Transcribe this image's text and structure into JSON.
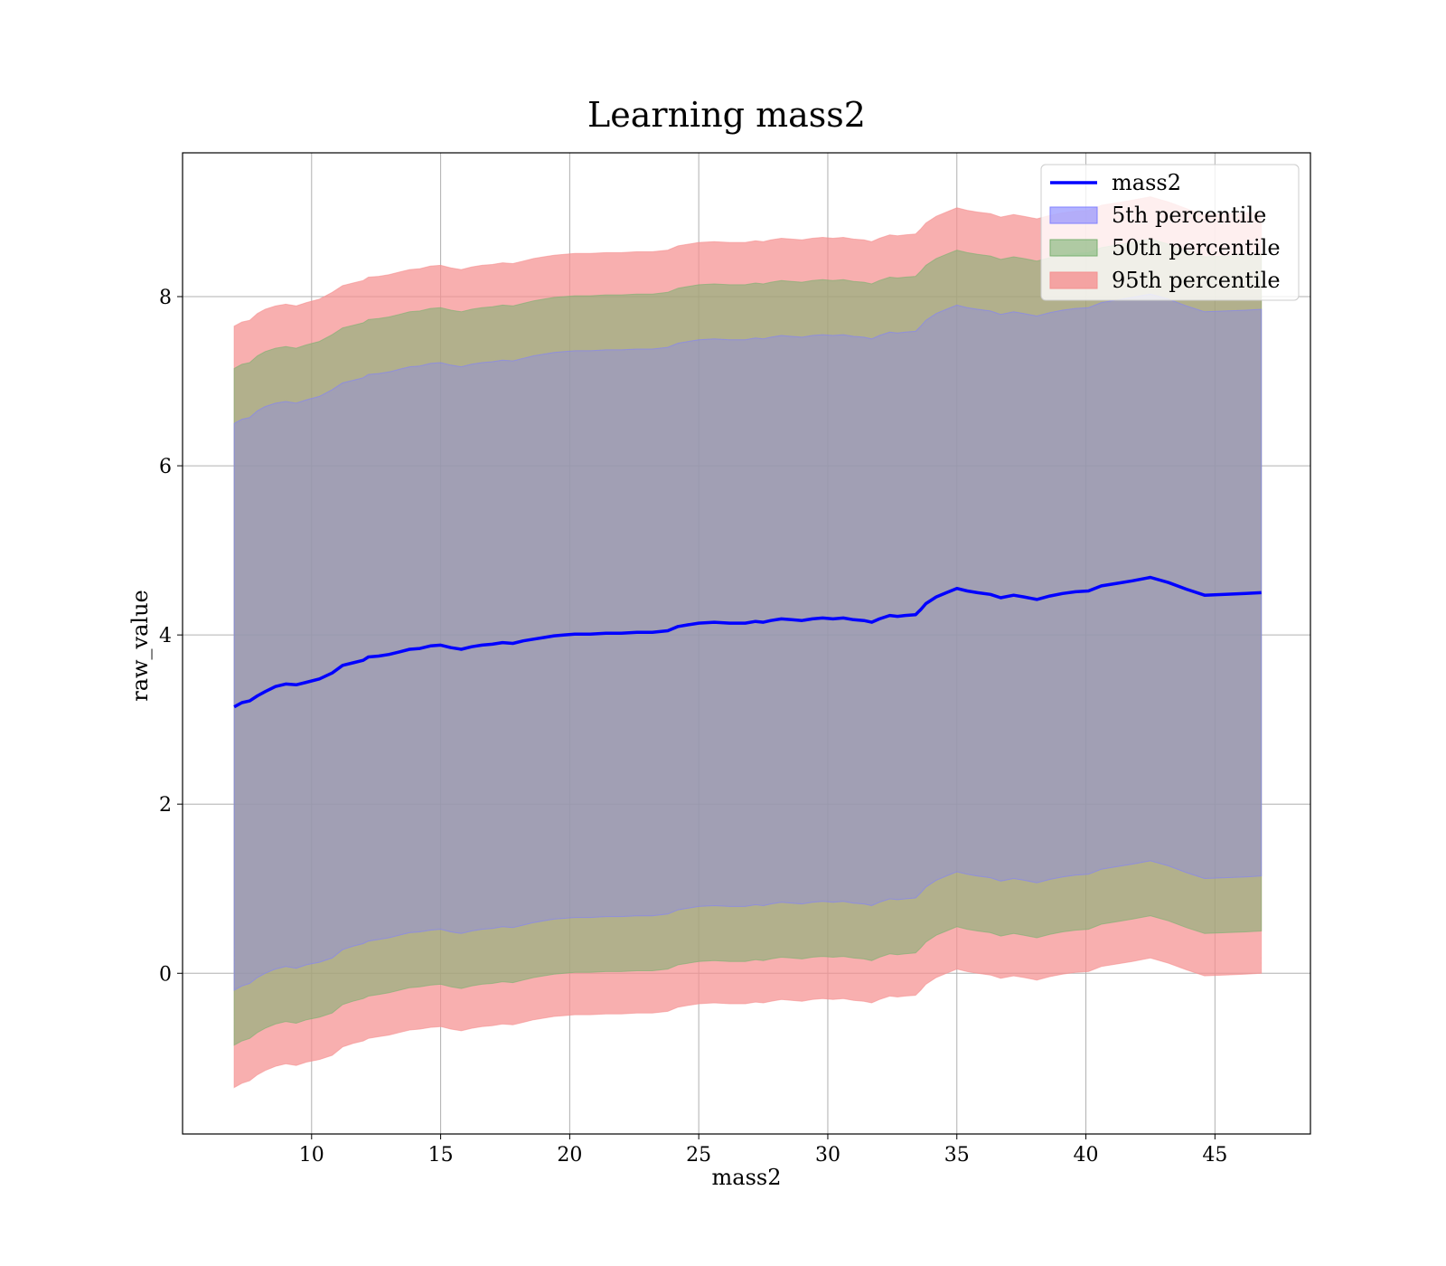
{
  "chart_data": {
    "type": "line",
    "title": "Learning mass2",
    "xlabel": "mass2",
    "ylabel": "raw_value",
    "xlim": [
      5.0,
      48.7
    ],
    "ylim": [
      -1.9,
      9.7
    ],
    "xticks": [
      10,
      15,
      20,
      25,
      30,
      35,
      40,
      45
    ],
    "yticks": [
      0,
      2,
      4,
      6,
      8
    ],
    "grid": true,
    "legend_position": "top-right",
    "colors": {
      "line": "#0000ff",
      "p5": "#8080ff",
      "p50": "#79b070",
      "p95": "#f59090",
      "band_fill": "#a07078",
      "band_mid": "#c89478",
      "band_outer": "#fdafaf",
      "grid": "#b0b0b0"
    },
    "x": [
      7.0,
      7.3,
      7.6,
      7.9,
      8.2,
      8.6,
      9.0,
      9.4,
      9.8,
      10.3,
      10.8,
      11.2,
      11.6,
      12.0,
      12.2,
      12.6,
      13.0,
      13.4,
      13.8,
      14.2,
      14.6,
      15.0,
      15.4,
      15.8,
      16.2,
      16.6,
      17.0,
      17.4,
      17.8,
      18.2,
      18.6,
      19.0,
      19.4,
      19.8,
      20.2,
      20.8,
      21.4,
      22.0,
      22.6,
      23.2,
      23.8,
      24.2,
      24.6,
      25.0,
      25.6,
      26.2,
      26.8,
      27.2,
      27.5,
      27.8,
      28.2,
      28.6,
      29.0,
      29.4,
      29.8,
      30.2,
      30.6,
      31.0,
      31.4,
      31.7,
      32.0,
      32.4,
      32.7,
      33.0,
      33.4,
      33.6,
      33.8,
      34.2,
      34.6,
      35.0,
      35.4,
      35.8,
      36.3,
      36.7,
      37.2,
      37.6,
      38.1,
      38.6,
      39.1,
      39.6,
      40.1,
      40.6,
      41.2,
      41.8,
      42.5,
      43.2,
      43.9,
      44.6,
      45.4,
      46.2,
      46.8
    ],
    "series": [
      {
        "name": "mass2",
        "values": [
          3.15,
          3.2,
          3.22,
          3.28,
          3.33,
          3.39,
          3.42,
          3.41,
          3.44,
          3.48,
          3.55,
          3.64,
          3.67,
          3.7,
          3.74,
          3.75,
          3.77,
          3.8,
          3.83,
          3.84,
          3.87,
          3.88,
          3.85,
          3.83,
          3.86,
          3.88,
          3.89,
          3.91,
          3.9,
          3.93,
          3.95,
          3.97,
          3.99,
          4.0,
          4.01,
          4.01,
          4.02,
          4.02,
          4.03,
          4.03,
          4.05,
          4.1,
          4.12,
          4.14,
          4.15,
          4.14,
          4.14,
          4.16,
          4.15,
          4.17,
          4.19,
          4.18,
          4.17,
          4.19,
          4.2,
          4.19,
          4.2,
          4.18,
          4.17,
          4.15,
          4.19,
          4.23,
          4.22,
          4.23,
          4.24,
          4.3,
          4.37,
          4.45,
          4.5,
          4.55,
          4.52,
          4.5,
          4.48,
          4.44,
          4.47,
          4.45,
          4.42,
          4.46,
          4.49,
          4.51,
          4.52,
          4.58,
          4.61,
          4.64,
          4.68,
          4.62,
          4.54,
          4.47,
          4.48,
          4.49,
          4.5
        ]
      },
      {
        "name": "5th percentile",
        "values": [
          -0.2,
          -0.15,
          -0.12,
          -0.05,
          0.0,
          0.05,
          0.08,
          0.06,
          0.1,
          0.13,
          0.18,
          0.28,
          0.32,
          0.35,
          0.38,
          0.4,
          0.42,
          0.45,
          0.48,
          0.49,
          0.51,
          0.52,
          0.49,
          0.47,
          0.5,
          0.52,
          0.53,
          0.55,
          0.54,
          0.57,
          0.6,
          0.62,
          0.64,
          0.65,
          0.66,
          0.66,
          0.67,
          0.67,
          0.68,
          0.68,
          0.7,
          0.75,
          0.77,
          0.79,
          0.8,
          0.79,
          0.79,
          0.81,
          0.8,
          0.82,
          0.84,
          0.83,
          0.82,
          0.84,
          0.85,
          0.84,
          0.85,
          0.83,
          0.82,
          0.8,
          0.84,
          0.88,
          0.87,
          0.88,
          0.89,
          0.95,
          1.02,
          1.1,
          1.15,
          1.2,
          1.17,
          1.15,
          1.13,
          1.09,
          1.12,
          1.1,
          1.07,
          1.11,
          1.14,
          1.16,
          1.17,
          1.23,
          1.26,
          1.29,
          1.33,
          1.27,
          1.19,
          1.12,
          1.13,
          1.14,
          1.15
        ]
      },
      {
        "name": "50th percentile",
        "values": [
          -0.85,
          -0.8,
          -0.77,
          -0.7,
          -0.65,
          -0.6,
          -0.57,
          -0.59,
          -0.55,
          -0.52,
          -0.47,
          -0.37,
          -0.33,
          -0.3,
          -0.27,
          -0.25,
          -0.23,
          -0.2,
          -0.17,
          -0.16,
          -0.14,
          -0.13,
          -0.16,
          -0.18,
          -0.15,
          -0.13,
          -0.12,
          -0.1,
          -0.11,
          -0.08,
          -0.05,
          -0.03,
          -0.01,
          0.0,
          0.01,
          0.01,
          0.02,
          0.02,
          0.03,
          0.03,
          0.05,
          0.1,
          0.12,
          0.14,
          0.15,
          0.14,
          0.14,
          0.16,
          0.15,
          0.17,
          0.19,
          0.18,
          0.17,
          0.19,
          0.2,
          0.19,
          0.2,
          0.18,
          0.17,
          0.15,
          0.19,
          0.23,
          0.22,
          0.23,
          0.24,
          0.3,
          0.37,
          0.45,
          0.5,
          0.55,
          0.52,
          0.5,
          0.48,
          0.44,
          0.47,
          0.45,
          0.42,
          0.46,
          0.49,
          0.51,
          0.52,
          0.58,
          0.61,
          0.64,
          0.68,
          0.62,
          0.54,
          0.47,
          0.48,
          0.49,
          0.5
        ]
      },
      {
        "name": "95th percentile",
        "values": [
          -1.35,
          -1.3,
          -1.27,
          -1.2,
          -1.15,
          -1.1,
          -1.07,
          -1.09,
          -1.05,
          -1.02,
          -0.97,
          -0.87,
          -0.83,
          -0.8,
          -0.77,
          -0.75,
          -0.73,
          -0.7,
          -0.67,
          -0.66,
          -0.64,
          -0.63,
          -0.66,
          -0.68,
          -0.65,
          -0.63,
          -0.62,
          -0.6,
          -0.61,
          -0.58,
          -0.55,
          -0.53,
          -0.51,
          -0.5,
          -0.49,
          -0.49,
          -0.48,
          -0.48,
          -0.47,
          -0.47,
          -0.45,
          -0.4,
          -0.38,
          -0.36,
          -0.35,
          -0.36,
          -0.36,
          -0.34,
          -0.35,
          -0.33,
          -0.31,
          -0.32,
          -0.33,
          -0.31,
          -0.3,
          -0.31,
          -0.3,
          -0.32,
          -0.33,
          -0.35,
          -0.31,
          -0.27,
          -0.28,
          -0.27,
          -0.26,
          -0.2,
          -0.13,
          -0.05,
          0.0,
          0.05,
          0.02,
          0.0,
          -0.02,
          -0.06,
          -0.03,
          -0.05,
          -0.08,
          -0.04,
          -0.01,
          0.01,
          0.02,
          0.08,
          0.11,
          0.14,
          0.18,
          0.12,
          0.04,
          -0.03,
          -0.02,
          -0.01,
          0.0
        ]
      }
    ],
    "band_upper": {
      "5th percentile": [
        6.5,
        6.55,
        6.57,
        6.65,
        6.7,
        6.74,
        6.76,
        6.74,
        6.78,
        6.82,
        6.9,
        6.98,
        7.01,
        7.04,
        7.08,
        7.09,
        7.11,
        7.14,
        7.17,
        7.18,
        7.21,
        7.22,
        7.19,
        7.17,
        7.2,
        7.22,
        7.23,
        7.25,
        7.24,
        7.27,
        7.3,
        7.32,
        7.34,
        7.35,
        7.36,
        7.36,
        7.37,
        7.37,
        7.38,
        7.38,
        7.4,
        7.45,
        7.47,
        7.49,
        7.5,
        7.49,
        7.49,
        7.51,
        7.5,
        7.52,
        7.54,
        7.53,
        7.52,
        7.54,
        7.55,
        7.54,
        7.55,
        7.53,
        7.52,
        7.5,
        7.54,
        7.58,
        7.57,
        7.58,
        7.59,
        7.65,
        7.72,
        7.8,
        7.85,
        7.9,
        7.87,
        7.85,
        7.83,
        7.79,
        7.82,
        7.8,
        7.77,
        7.81,
        7.84,
        7.86,
        7.87,
        7.93,
        7.96,
        7.99,
        8.03,
        7.97,
        7.89,
        7.82,
        7.83,
        7.84,
        7.85
      ],
      "50th percentile": [
        7.15,
        7.2,
        7.22,
        7.3,
        7.35,
        7.39,
        7.41,
        7.39,
        7.43,
        7.47,
        7.55,
        7.63,
        7.66,
        7.69,
        7.73,
        7.74,
        7.76,
        7.79,
        7.82,
        7.83,
        7.86,
        7.87,
        7.84,
        7.82,
        7.85,
        7.87,
        7.88,
        7.9,
        7.89,
        7.92,
        7.95,
        7.97,
        7.99,
        8.0,
        8.01,
        8.01,
        8.02,
        8.02,
        8.03,
        8.03,
        8.05,
        8.1,
        8.12,
        8.14,
        8.15,
        8.14,
        8.14,
        8.16,
        8.15,
        8.17,
        8.19,
        8.18,
        8.17,
        8.19,
        8.2,
        8.19,
        8.2,
        8.18,
        8.17,
        8.15,
        8.19,
        8.23,
        8.22,
        8.23,
        8.24,
        8.3,
        8.37,
        8.45,
        8.5,
        8.55,
        8.52,
        8.5,
        8.48,
        8.44,
        8.47,
        8.45,
        8.42,
        8.46,
        8.49,
        8.51,
        8.52,
        8.58,
        8.61,
        8.64,
        8.68,
        8.62,
        8.54,
        8.47,
        8.48,
        8.49,
        8.5
      ],
      "95th percentile": [
        7.65,
        7.7,
        7.72,
        7.8,
        7.85,
        7.89,
        7.91,
        7.89,
        7.93,
        7.97,
        8.05,
        8.13,
        8.16,
        8.19,
        8.23,
        8.24,
        8.26,
        8.29,
        8.32,
        8.33,
        8.36,
        8.37,
        8.34,
        8.32,
        8.35,
        8.37,
        8.38,
        8.4,
        8.39,
        8.42,
        8.45,
        8.47,
        8.49,
        8.5,
        8.51,
        8.51,
        8.52,
        8.52,
        8.53,
        8.53,
        8.55,
        8.6,
        8.62,
        8.64,
        8.65,
        8.64,
        8.64,
        8.66,
        8.65,
        8.67,
        8.69,
        8.68,
        8.67,
        8.69,
        8.7,
        8.69,
        8.7,
        8.68,
        8.67,
        8.65,
        8.69,
        8.73,
        8.72,
        8.73,
        8.74,
        8.8,
        8.87,
        8.95,
        9.0,
        9.05,
        9.02,
        9.0,
        8.98,
        8.94,
        8.97,
        8.95,
        8.92,
        8.96,
        8.99,
        9.01,
        9.02,
        9.08,
        9.11,
        9.14,
        9.18,
        9.12,
        9.04,
        8.97,
        8.98,
        8.99,
        9.0
      ]
    }
  }
}
